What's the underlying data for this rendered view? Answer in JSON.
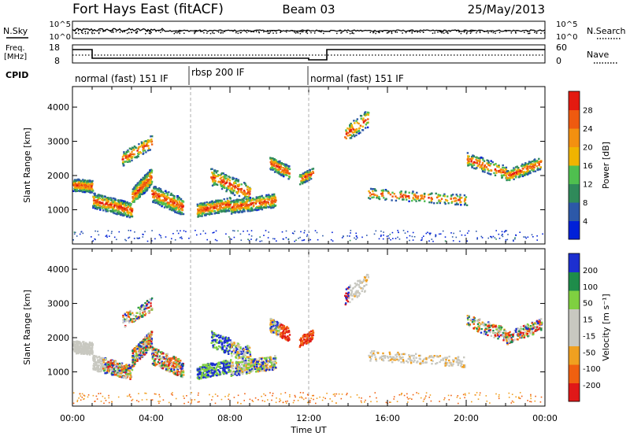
{
  "header": {
    "station": "Fort Hays East (fitACF)",
    "beam": "Beam 03",
    "date": "25/May/2013"
  },
  "noise_panel": {
    "left_label": "N.Sky",
    "right_label": "N.Search",
    "left_ticks": [
      "10^5",
      "10^0"
    ],
    "right_ticks": [
      "10^5",
      "10^0"
    ]
  },
  "freq_panel": {
    "left_label_1": "Freq.",
    "left_label_2": "[MHz]",
    "left_ticks": [
      "18",
      "8"
    ],
    "right_ticks": [
      "60",
      "0"
    ],
    "right_label": "Nave"
  },
  "cpid_panel": {
    "label": "CPID",
    "segments": [
      {
        "name": "normal (fast) 151 IF",
        "start_hour": 0,
        "end_hour": 6
      },
      {
        "name": "rbsp 200 IF",
        "start_hour": 6,
        "end_hour": 12
      },
      {
        "name": "normal (fast) 151 IF",
        "start_hour": 12,
        "end_hour": 24
      }
    ]
  },
  "colors": {
    "power_scale": [
      "#0020d8",
      "#2c58a8",
      "#2f8a5a",
      "#4fbf4f",
      "#f0b400",
      "#f39010",
      "#ef5a10",
      "#e41a10"
    ],
    "velocity_scale": [
      "#1c2fd0",
      "#1e8c4a",
      "#7fd040",
      "#c8c8c0",
      "#c8c8c0",
      "#f0a020",
      "#f06010",
      "#e01818"
    ]
  },
  "chart_data": [
    {
      "type": "heatmap",
      "title": "",
      "ylabel": "Slant Range [km]",
      "xlabel": "",
      "ylim": [
        0,
        4600
      ],
      "y_ticks": [
        1000,
        2000,
        3000,
        4000
      ],
      "colorbar": {
        "label": "Power [dB]",
        "ticks": [
          "28",
          "24",
          "20",
          "16",
          "12",
          "8",
          "4"
        ]
      }
    },
    {
      "type": "heatmap",
      "title": "",
      "ylabel": "Slant Range [km]",
      "xlabel": "Time UT",
      "ylim": [
        0,
        4600
      ],
      "y_ticks": [
        1000,
        2000,
        3000,
        4000
      ],
      "x_ticks": [
        "00:00",
        "04:00",
        "08:00",
        "12:00",
        "16:00",
        "20:00",
        "00:00"
      ],
      "colorbar": {
        "label": "Velocity [m s⁻¹]",
        "ticks": [
          "200",
          "100",
          "50",
          "15",
          "-15",
          "-50",
          "-100",
          "-200"
        ]
      }
    }
  ]
}
